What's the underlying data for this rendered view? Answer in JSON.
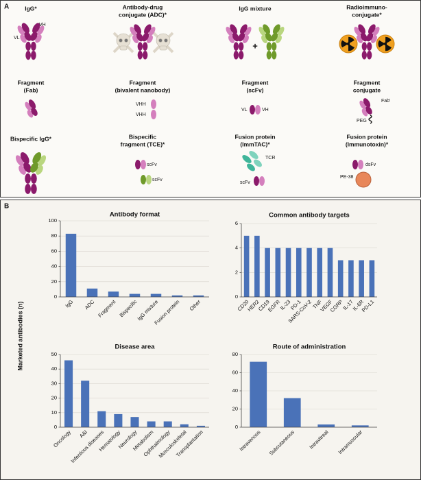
{
  "panel_a": {
    "label": "A",
    "formats": [
      {
        "title": [
          "IgG*"
        ],
        "labels": [
          "VH",
          "VL"
        ]
      },
      {
        "title": [
          "Antibody-drug",
          "conjugate (ADC)*"
        ]
      },
      {
        "title": [
          "IgG mixture"
        ],
        "labels": [
          "+"
        ]
      },
      {
        "title": [
          "Radioimmuno-",
          "conjugate*"
        ]
      },
      {
        "title": [
          "Fragment",
          "(Fab)"
        ]
      },
      {
        "title": [
          "Fragment",
          "(bivalent nanobody)"
        ],
        "labels": [
          "VHH",
          "VHH"
        ]
      },
      {
        "title": [
          "Fragment",
          "(scFv)"
        ],
        "labels": [
          "VL",
          "VH"
        ]
      },
      {
        "title": [
          "Fragment",
          "conjugate"
        ],
        "labels": [
          "Fab'",
          "PEG"
        ]
      },
      {
        "title": [
          "Bispecific IgG*"
        ]
      },
      {
        "title": [
          "Bispecific",
          "fragment (TCE)*"
        ],
        "labels": [
          "scFv",
          "scFv"
        ]
      },
      {
        "title": [
          "Fusion protein",
          "(ImmTAC)*"
        ],
        "labels": [
          "TCR",
          "scFv"
        ]
      },
      {
        "title": [
          "Fusion protein",
          "(Immunotoxin)*"
        ],
        "labels": [
          "dsFv",
          "PE-38"
        ]
      }
    ]
  },
  "panel_b": {
    "label": "B",
    "y_axis_label": "Marketed antibodies (n)"
  },
  "chart_data": [
    {
      "type": "bar",
      "title": "Antibody format",
      "categories": [
        "IgG",
        "ADC",
        "Fragment",
        "Bispecific",
        "IgG mixture",
        "Fusion protein",
        "Other"
      ],
      "values": [
        83,
        11,
        7,
        4,
        4,
        2,
        2
      ],
      "color": "#4a72b8",
      "ylim": [
        0,
        100
      ],
      "yticks": [
        0,
        20,
        40,
        60,
        80,
        100
      ],
      "grid": true
    },
    {
      "type": "bar",
      "title": "Common antibody targets",
      "categories": [
        "CD20",
        "HER2",
        "CD19",
        "EGFR",
        "IL-23",
        "PD-1",
        "SARS-CoV-2",
        "TNF",
        "VEGF",
        "CGRP",
        "IL-17",
        "IL-6R",
        "PD-L1"
      ],
      "values": [
        5,
        5,
        4,
        4,
        4,
        4,
        4,
        4,
        4,
        3,
        3,
        3,
        3
      ],
      "color": "#4a72b8",
      "ylim": [
        0,
        6
      ],
      "yticks": [
        0,
        2,
        4,
        6
      ],
      "grid": true
    },
    {
      "type": "bar",
      "title": "Disease area",
      "categories": [
        "Oncology",
        "A&I",
        "Infectious diseases",
        "Hematology",
        "Neurology",
        "Metabolism",
        "Ophthalmology",
        "Musculoskeletal",
        "Transplantation"
      ],
      "values": [
        46,
        32,
        11,
        9,
        7,
        4,
        4,
        2,
        1
      ],
      "color": "#4a72b8",
      "ylim": [
        0,
        50
      ],
      "yticks": [
        0,
        10,
        20,
        30,
        40,
        50
      ],
      "grid": true
    },
    {
      "type": "bar",
      "title": "Route of administration",
      "categories": [
        "Intravenous",
        "Subcutaneous",
        "Intravitreal",
        "Intramuscular"
      ],
      "values": [
        72,
        32,
        3,
        2
      ],
      "color": "#4a72b8",
      "ylim": [
        0,
        80
      ],
      "yticks": [
        0,
        20,
        40,
        60,
        80
      ],
      "grid": true
    }
  ]
}
